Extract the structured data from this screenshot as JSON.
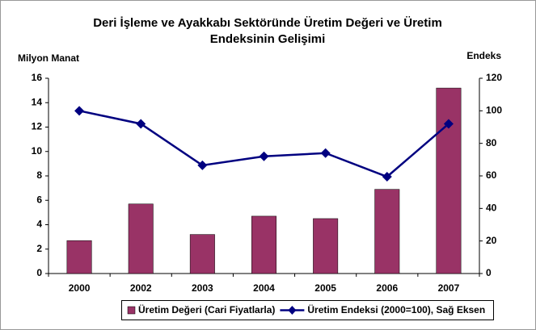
{
  "chart_data": {
    "type": "bar",
    "title": [
      "Deri İşleme ve Ayakkabı Sektöründe Üretim Değeri ve Üretim",
      "Endeksinin Gelişimi"
    ],
    "ylabel": "Milyon Manat",
    "y2label": "Endeks",
    "categories": [
      "2000",
      "2002",
      "2003",
      "2004",
      "2005",
      "2006",
      "2007"
    ],
    "series": [
      {
        "name": "Üretim Değeri (Cari Fiyatlarla)",
        "type": "bar",
        "color": "#993366",
        "values": [
          2.7,
          5.7,
          3.2,
          4.7,
          4.5,
          6.9,
          15.2
        ]
      },
      {
        "name": "Üretim Endeksi (2000=100), Sağ Eksen",
        "type": "line",
        "axis": "y2",
        "color": "#000080",
        "values": [
          100,
          92,
          66.5,
          72,
          74,
          59.5,
          92
        ]
      }
    ],
    "ylim": [
      0,
      16
    ],
    "yticks": [
      0,
      2,
      4,
      6,
      8,
      10,
      12,
      14,
      16
    ],
    "y2lim": [
      0,
      120
    ],
    "y2ticks": [
      0,
      20,
      40,
      60,
      80,
      100,
      120
    ],
    "grid": false,
    "legend": "bottom"
  }
}
